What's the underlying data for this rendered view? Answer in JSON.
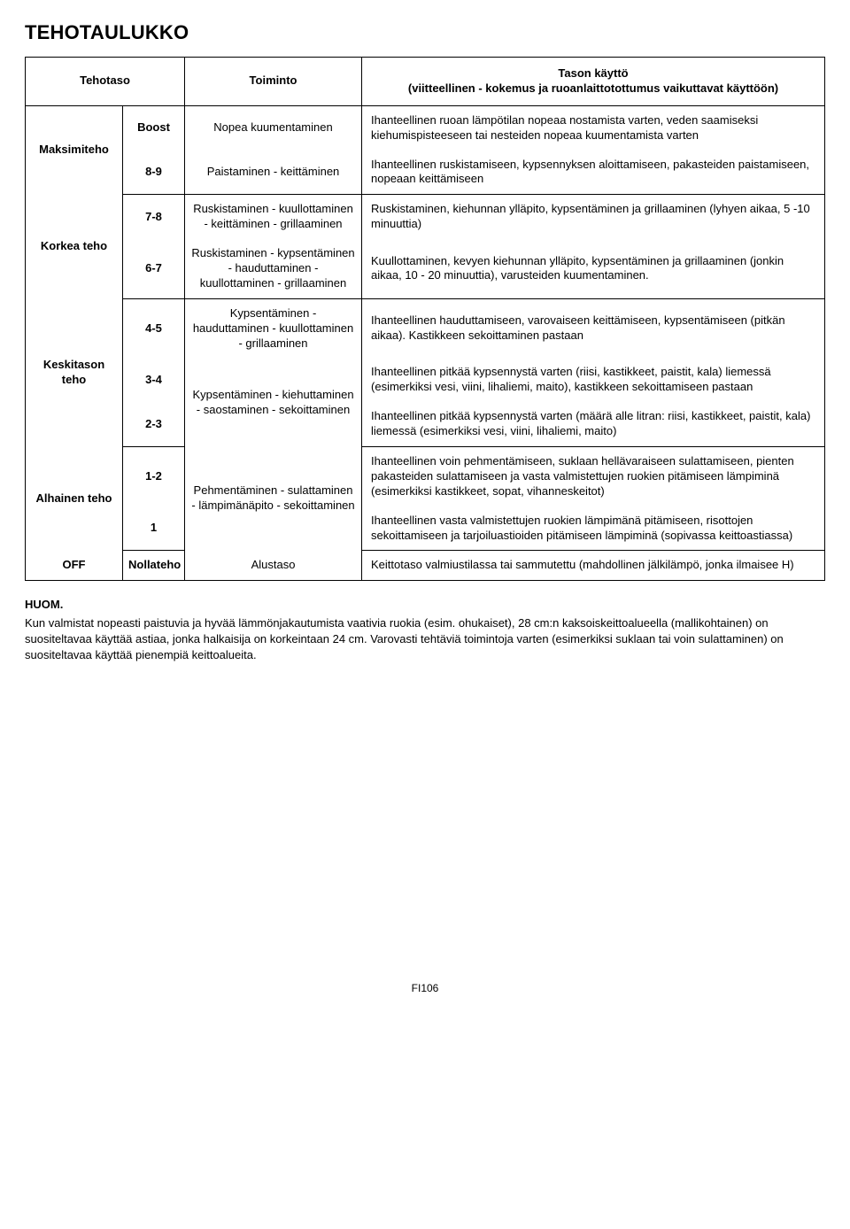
{
  "page": {
    "title": "TEHOTAULUKKO",
    "footer": "FI106"
  },
  "headers": {
    "category": "Tehotaso",
    "function": "Toiminto",
    "usage_line1": "Tason käyttö",
    "usage_line2": "(viitteellinen - kokemus ja ruoanlaittotottumus vaikuttavat käyttöön)"
  },
  "rows": {
    "maks": {
      "label": "Maksimiteho",
      "boost": {
        "level": "Boost",
        "func": "Nopea kuumentaminen",
        "desc": "Ihanteellinen ruoan lämpötilan nopeaa nostamista varten, veden saamiseksi kiehumispisteeseen tai nesteiden nopeaa kuumentamista varten"
      },
      "l89": {
        "level": "8-9",
        "func": "Paistaminen - keittäminen",
        "desc": "Ihanteellinen ruskistamiseen, kypsennyksen aloittamiseen, pakasteiden paistamiseen, nopeaan keittämiseen"
      }
    },
    "korkea": {
      "label": "Korkea teho",
      "l78": {
        "level": "7-8",
        "func": "Ruskistaminen - kuullottaminen - keittäminen - grillaaminen",
        "desc": "Ruskistaminen, kiehunnan ylläpito, kypsentäminen ja grillaaminen (lyhyen aikaa, 5 -10 minuuttia)"
      },
      "l67": {
        "level": "6-7",
        "func": "Ruskistaminen - kypsentäminen - hauduttaminen - kuullottaminen - grillaaminen",
        "desc": "Kuullottaminen, kevyen kiehunnan ylläpito, kypsentäminen ja grillaaminen (jonkin aikaa, 10 - 20 minuuttia), varusteiden kuumentaminen."
      }
    },
    "keski": {
      "label": "Keskitason teho",
      "l45": {
        "level": "4-5",
        "func": "Kypsentäminen - hauduttaminen - kuullottaminen - grillaaminen",
        "desc": "Ihanteellinen hauduttamiseen, varovaiseen keittämiseen, kypsentämiseen (pitkän aikaa). Kastikkeen sekoittaminen pastaan"
      },
      "l34": {
        "level": "3-4",
        "func_shared": "Kypsentäminen - kiehuttaminen - saostaminen - sekoittaminen",
        "desc": "Ihanteellinen pitkää kypsennystä varten (riisi, kastikkeet, paistit, kala) liemessä (esimerkiksi vesi, viini, lihaliemi, maito), kastikkeen sekoittamiseen pastaan"
      },
      "l23": {
        "level": "2-3",
        "desc": "Ihanteellinen pitkää kypsennystä varten (määrä alle litran: riisi, kastikkeet, paistit, kala) liemessä (esimerkiksi vesi, viini, lihaliemi, maito)"
      }
    },
    "alh": {
      "label": "Alhainen teho",
      "l12": {
        "level": "1-2",
        "func_shared": "Pehmentäminen - sulattaminen - lämpimänäpito - sekoittaminen",
        "desc": "Ihanteellinen voin pehmentämiseen, suklaan hellävaraiseen sulattamiseen, pienten pakasteiden sulattamiseen ja vasta valmistettujen ruokien pitämiseen lämpiminä (esimerkiksi kastikkeet, sopat, vihanneskeitot)"
      },
      "l1": {
        "level": "1",
        "desc": "Ihanteellinen vasta valmistettujen ruokien lämpimänä pitämiseen, risottojen sekoittamiseen ja tarjoiluastioiden pitämiseen lämpiminä (sopivassa keittoastiassa)"
      }
    },
    "off": {
      "label": "OFF",
      "level": "Nollateho",
      "func": "Alustaso",
      "desc": "Keittotaso valmiustilassa tai sammutettu (mahdollinen jälkilämpö, jonka ilmaisee H)"
    }
  },
  "notes": {
    "heading": "HUOM.",
    "body": "Kun valmistat nopeasti paistuvia ja hyvää lämmönjakautumista vaativia ruokia (esim. ohukaiset), 28 cm:n kaksoiskeittoalueella (mallikohtainen) on suositeltavaa käyttää astiaa, jonka halkaisija on korkeintaan 24 cm. Varovasti tehtäviä toimintoja varten (esimerkiksi suklaan tai voin sulattaminen) on suositeltavaa käyttää pienempiä keittoalueita."
  }
}
